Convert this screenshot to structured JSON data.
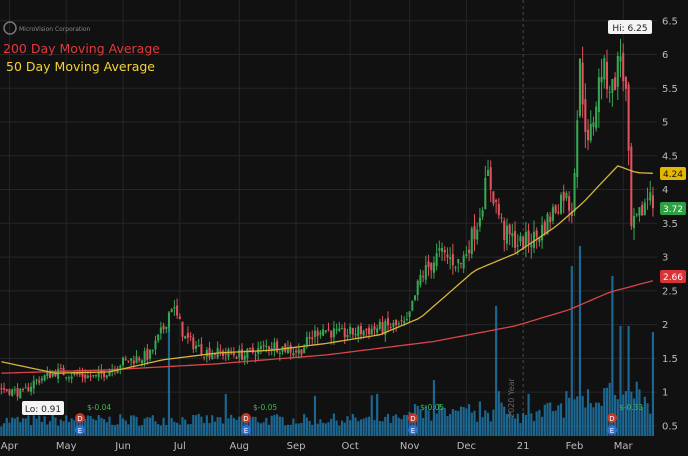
{
  "company": "MicroVision Corporation",
  "legend": {
    "ma200": "200 Day Moving Average",
    "ma50": "50 Day Moving Average"
  },
  "colors": {
    "background": "#111111",
    "grid": "#262626",
    "up": "#35a853",
    "down": "#e0525e",
    "volume": "#1f77a8",
    "ma50": "#d8b43a",
    "ma200": "#d9454a",
    "axis_text": "#bbbbbb",
    "ma50_badge": "#e5b700",
    "ma200_badge": "#d83434",
    "last_badge": "#2ea043"
  },
  "annotations": {
    "hi_label": "Hi: 6.25",
    "lo_label": "Lo: 0.91",
    "year_marker": "2020 Year",
    "badge_ma50": "4.24",
    "badge_last": "3.72",
    "badge_ma200": "2.66"
  },
  "dividends": [
    "$-0.04",
    "$-0.05",
    "$-0.05",
    "$-0.33"
  ],
  "chart_data": {
    "type": "candlestick",
    "title": "",
    "xlabel": "",
    "ylabel": "",
    "ylim": [
      0.35,
      6.6
    ],
    "y_ticks": [
      0.5,
      1,
      1.5,
      2,
      2.5,
      3,
      3.5,
      4,
      4.5,
      5,
      5.5,
      6,
      6.5
    ],
    "y_tick_labels": [
      "0.5",
      "1",
      "1.5",
      "2",
      "2.5",
      "3",
      "3.5",
      "4",
      "4.5",
      "5",
      "5.5",
      "6",
      "6.5"
    ],
    "x_ticks": [
      {
        "label": "Apr",
        "index": 3
      },
      {
        "label": "May",
        "index": 24
      },
      {
        "label": "Jun",
        "index": 45
      },
      {
        "label": "Jul",
        "index": 66
      },
      {
        "label": "Aug",
        "index": 88
      },
      {
        "label": "Sep",
        "index": 109
      },
      {
        "label": "Oct",
        "index": 129
      },
      {
        "label": "Nov",
        "index": 151
      },
      {
        "label": "Dec",
        "index": 172
      },
      {
        "label": "21",
        "index": 193
      },
      {
        "label": "Feb",
        "index": 212
      },
      {
        "label": "Mar",
        "index": 230
      }
    ],
    "n_sessions": 242,
    "price_path": [
      [
        0,
        1.05
      ],
      [
        8,
        0.98
      ],
      [
        12,
        1.15
      ],
      [
        20,
        1.3
      ],
      [
        35,
        1.22
      ],
      [
        45,
        1.45
      ],
      [
        55,
        1.55
      ],
      [
        60,
        1.95
      ],
      [
        63,
        2.3
      ],
      [
        68,
        1.8
      ],
      [
        75,
        1.6
      ],
      [
        90,
        1.55
      ],
      [
        100,
        1.7
      ],
      [
        110,
        1.6
      ],
      [
        118,
        1.95
      ],
      [
        125,
        1.85
      ],
      [
        140,
        1.95
      ],
      [
        150,
        2.0
      ],
      [
        155,
        2.7
      ],
      [
        162,
        3.05
      ],
      [
        170,
        2.9
      ],
      [
        176,
        3.5
      ],
      [
        180,
        4.2
      ],
      [
        186,
        3.35
      ],
      [
        192,
        3.2
      ],
      [
        198,
        3.3
      ],
      [
        203,
        3.6
      ],
      [
        208,
        3.95
      ],
      [
        211,
        3.7
      ],
      [
        214,
        5.8
      ],
      [
        217,
        4.6
      ],
      [
        222,
        5.8
      ],
      [
        226,
        5.5
      ],
      [
        229,
        6.0
      ],
      [
        231,
        5.4
      ],
      [
        233,
        3.4
      ],
      [
        236,
        3.6
      ],
      [
        240,
        4.0
      ],
      [
        242,
        3.72
      ]
    ],
    "volume_spikes": [
      [
        62,
        0.45
      ],
      [
        160,
        0.28
      ],
      [
        183,
        0.65
      ],
      [
        211,
        0.85
      ],
      [
        214,
        0.95
      ],
      [
        226,
        0.8
      ],
      [
        229,
        0.55
      ],
      [
        232,
        0.45
      ],
      [
        241,
        0.52
      ]
    ],
    "ma50_path": [
      [
        0,
        1.45
      ],
      [
        20,
        1.28
      ],
      [
        40,
        1.3
      ],
      [
        60,
        1.48
      ],
      [
        80,
        1.58
      ],
      [
        100,
        1.62
      ],
      [
        120,
        1.72
      ],
      [
        140,
        1.85
      ],
      [
        155,
        2.1
      ],
      [
        165,
        2.45
      ],
      [
        175,
        2.8
      ],
      [
        190,
        3.05
      ],
      [
        205,
        3.45
      ],
      [
        215,
        3.8
      ],
      [
        222,
        4.1
      ],
      [
        228,
        4.35
      ],
      [
        235,
        4.25
      ],
      [
        242,
        4.24
      ]
    ],
    "ma200_path": [
      [
        0,
        1.28
      ],
      [
        40,
        1.33
      ],
      [
        80,
        1.42
      ],
      [
        120,
        1.55
      ],
      [
        160,
        1.75
      ],
      [
        190,
        1.98
      ],
      [
        210,
        2.22
      ],
      [
        225,
        2.48
      ],
      [
        242,
        2.66
      ]
    ]
  }
}
